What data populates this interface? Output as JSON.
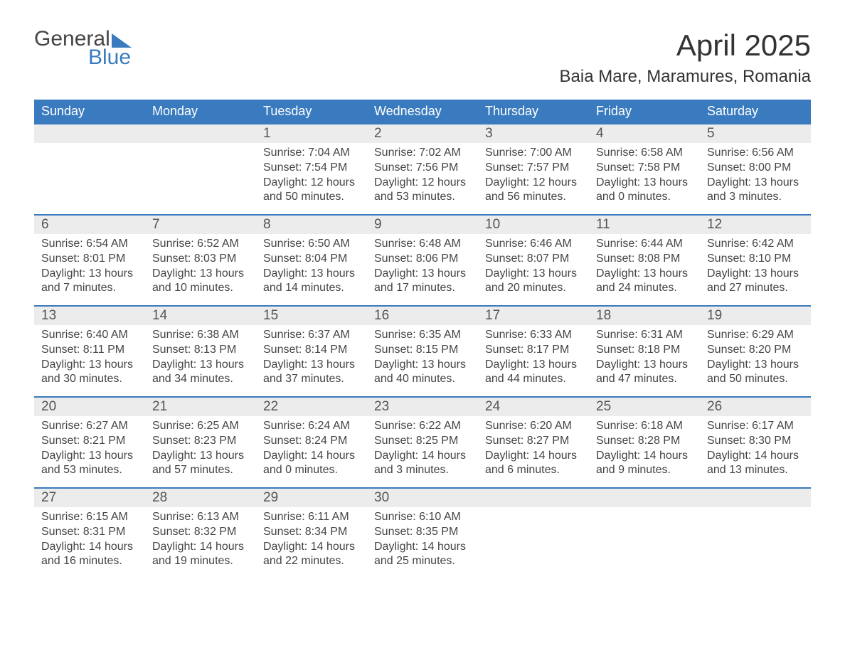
{
  "brand": {
    "line1": "General",
    "line2": "Blue"
  },
  "title": "April 2025",
  "location": "Baia Mare, Maramures, Romania",
  "colors": {
    "header_bg": "#3a7bbf",
    "header_text": "#ffffff",
    "daynum_bg": "#ececec",
    "text": "#454545",
    "row_border": "#3a7bbf",
    "page_bg": "#ffffff"
  },
  "weekdays": [
    "Sunday",
    "Monday",
    "Tuesday",
    "Wednesday",
    "Thursday",
    "Friday",
    "Saturday"
  ],
  "weeks": [
    [
      null,
      null,
      {
        "n": "1",
        "sunrise": "Sunrise: 7:04 AM",
        "sunset": "Sunset: 7:54 PM",
        "daylight": "Daylight: 12 hours and 50 minutes."
      },
      {
        "n": "2",
        "sunrise": "Sunrise: 7:02 AM",
        "sunset": "Sunset: 7:56 PM",
        "daylight": "Daylight: 12 hours and 53 minutes."
      },
      {
        "n": "3",
        "sunrise": "Sunrise: 7:00 AM",
        "sunset": "Sunset: 7:57 PM",
        "daylight": "Daylight: 12 hours and 56 minutes."
      },
      {
        "n": "4",
        "sunrise": "Sunrise: 6:58 AM",
        "sunset": "Sunset: 7:58 PM",
        "daylight": "Daylight: 13 hours and 0 minutes."
      },
      {
        "n": "5",
        "sunrise": "Sunrise: 6:56 AM",
        "sunset": "Sunset: 8:00 PM",
        "daylight": "Daylight: 13 hours and 3 minutes."
      }
    ],
    [
      {
        "n": "6",
        "sunrise": "Sunrise: 6:54 AM",
        "sunset": "Sunset: 8:01 PM",
        "daylight": "Daylight: 13 hours and 7 minutes."
      },
      {
        "n": "7",
        "sunrise": "Sunrise: 6:52 AM",
        "sunset": "Sunset: 8:03 PM",
        "daylight": "Daylight: 13 hours and 10 minutes."
      },
      {
        "n": "8",
        "sunrise": "Sunrise: 6:50 AM",
        "sunset": "Sunset: 8:04 PM",
        "daylight": "Daylight: 13 hours and 14 minutes."
      },
      {
        "n": "9",
        "sunrise": "Sunrise: 6:48 AM",
        "sunset": "Sunset: 8:06 PM",
        "daylight": "Daylight: 13 hours and 17 minutes."
      },
      {
        "n": "10",
        "sunrise": "Sunrise: 6:46 AM",
        "sunset": "Sunset: 8:07 PM",
        "daylight": "Daylight: 13 hours and 20 minutes."
      },
      {
        "n": "11",
        "sunrise": "Sunrise: 6:44 AM",
        "sunset": "Sunset: 8:08 PM",
        "daylight": "Daylight: 13 hours and 24 minutes."
      },
      {
        "n": "12",
        "sunrise": "Sunrise: 6:42 AM",
        "sunset": "Sunset: 8:10 PM",
        "daylight": "Daylight: 13 hours and 27 minutes."
      }
    ],
    [
      {
        "n": "13",
        "sunrise": "Sunrise: 6:40 AM",
        "sunset": "Sunset: 8:11 PM",
        "daylight": "Daylight: 13 hours and 30 minutes."
      },
      {
        "n": "14",
        "sunrise": "Sunrise: 6:38 AM",
        "sunset": "Sunset: 8:13 PM",
        "daylight": "Daylight: 13 hours and 34 minutes."
      },
      {
        "n": "15",
        "sunrise": "Sunrise: 6:37 AM",
        "sunset": "Sunset: 8:14 PM",
        "daylight": "Daylight: 13 hours and 37 minutes."
      },
      {
        "n": "16",
        "sunrise": "Sunrise: 6:35 AM",
        "sunset": "Sunset: 8:15 PM",
        "daylight": "Daylight: 13 hours and 40 minutes."
      },
      {
        "n": "17",
        "sunrise": "Sunrise: 6:33 AM",
        "sunset": "Sunset: 8:17 PM",
        "daylight": "Daylight: 13 hours and 44 minutes."
      },
      {
        "n": "18",
        "sunrise": "Sunrise: 6:31 AM",
        "sunset": "Sunset: 8:18 PM",
        "daylight": "Daylight: 13 hours and 47 minutes."
      },
      {
        "n": "19",
        "sunrise": "Sunrise: 6:29 AM",
        "sunset": "Sunset: 8:20 PM",
        "daylight": "Daylight: 13 hours and 50 minutes."
      }
    ],
    [
      {
        "n": "20",
        "sunrise": "Sunrise: 6:27 AM",
        "sunset": "Sunset: 8:21 PM",
        "daylight": "Daylight: 13 hours and 53 minutes."
      },
      {
        "n": "21",
        "sunrise": "Sunrise: 6:25 AM",
        "sunset": "Sunset: 8:23 PM",
        "daylight": "Daylight: 13 hours and 57 minutes."
      },
      {
        "n": "22",
        "sunrise": "Sunrise: 6:24 AM",
        "sunset": "Sunset: 8:24 PM",
        "daylight": "Daylight: 14 hours and 0 minutes."
      },
      {
        "n": "23",
        "sunrise": "Sunrise: 6:22 AM",
        "sunset": "Sunset: 8:25 PM",
        "daylight": "Daylight: 14 hours and 3 minutes."
      },
      {
        "n": "24",
        "sunrise": "Sunrise: 6:20 AM",
        "sunset": "Sunset: 8:27 PM",
        "daylight": "Daylight: 14 hours and 6 minutes."
      },
      {
        "n": "25",
        "sunrise": "Sunrise: 6:18 AM",
        "sunset": "Sunset: 8:28 PM",
        "daylight": "Daylight: 14 hours and 9 minutes."
      },
      {
        "n": "26",
        "sunrise": "Sunrise: 6:17 AM",
        "sunset": "Sunset: 8:30 PM",
        "daylight": "Daylight: 14 hours and 13 minutes."
      }
    ],
    [
      {
        "n": "27",
        "sunrise": "Sunrise: 6:15 AM",
        "sunset": "Sunset: 8:31 PM",
        "daylight": "Daylight: 14 hours and 16 minutes."
      },
      {
        "n": "28",
        "sunrise": "Sunrise: 6:13 AM",
        "sunset": "Sunset: 8:32 PM",
        "daylight": "Daylight: 14 hours and 19 minutes."
      },
      {
        "n": "29",
        "sunrise": "Sunrise: 6:11 AM",
        "sunset": "Sunset: 8:34 PM",
        "daylight": "Daylight: 14 hours and 22 minutes."
      },
      {
        "n": "30",
        "sunrise": "Sunrise: 6:10 AM",
        "sunset": "Sunset: 8:35 PM",
        "daylight": "Daylight: 14 hours and 25 minutes."
      },
      null,
      null,
      null
    ]
  ]
}
